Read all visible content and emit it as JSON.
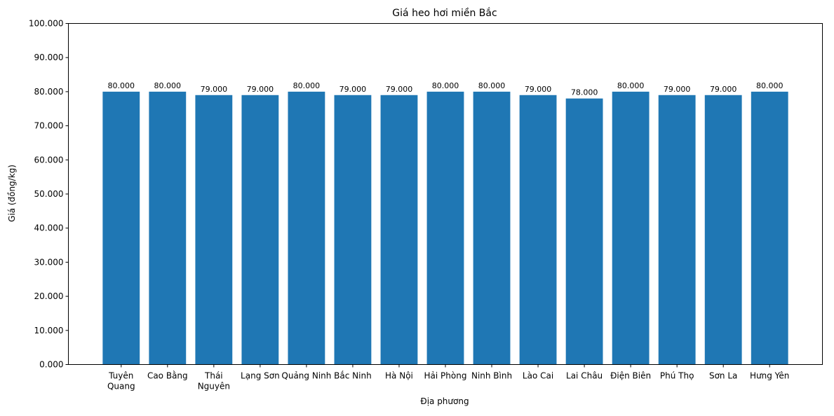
{
  "chart_data": {
    "type": "bar",
    "title": "Giá heo hơi miền Bắc",
    "xlabel": "Địa phương",
    "ylabel": "Giá (đồng/kg)",
    "ylim": [
      0,
      100000
    ],
    "yticks": [
      0,
      10000,
      20000,
      30000,
      40000,
      50000,
      60000,
      70000,
      80000,
      90000,
      100000
    ],
    "ytick_labels": [
      "0.000",
      "10.000",
      "20.000",
      "30.000",
      "40.000",
      "50.000",
      "60.000",
      "70.000",
      "80.000",
      "90.000",
      "100.000"
    ],
    "categories": [
      "Tuyên\nQuang",
      "Cao Bằng",
      "Thái\nNguyên",
      "Lạng Sơn",
      "Quảng Ninh",
      "Bắc Ninh",
      "Hà Nội",
      "Hải Phòng",
      "Ninh Bình",
      "Lào Cai",
      "Lai Châu",
      "Điện Biên",
      "Phú Thọ",
      "Sơn La",
      "Hưng Yên"
    ],
    "values": [
      80000,
      80000,
      79000,
      79000,
      80000,
      79000,
      79000,
      80000,
      80000,
      79000,
      78000,
      80000,
      79000,
      79000,
      80000
    ],
    "data_labels": [
      "80.000",
      "80.000",
      "79.000",
      "79.000",
      "80.000",
      "79.000",
      "79.000",
      "80.000",
      "80.000",
      "79.000",
      "78.000",
      "80.000",
      "79.000",
      "79.000",
      "80.000"
    ],
    "bar_color": "#1f77b4",
    "grid": false,
    "legend": "none"
  }
}
